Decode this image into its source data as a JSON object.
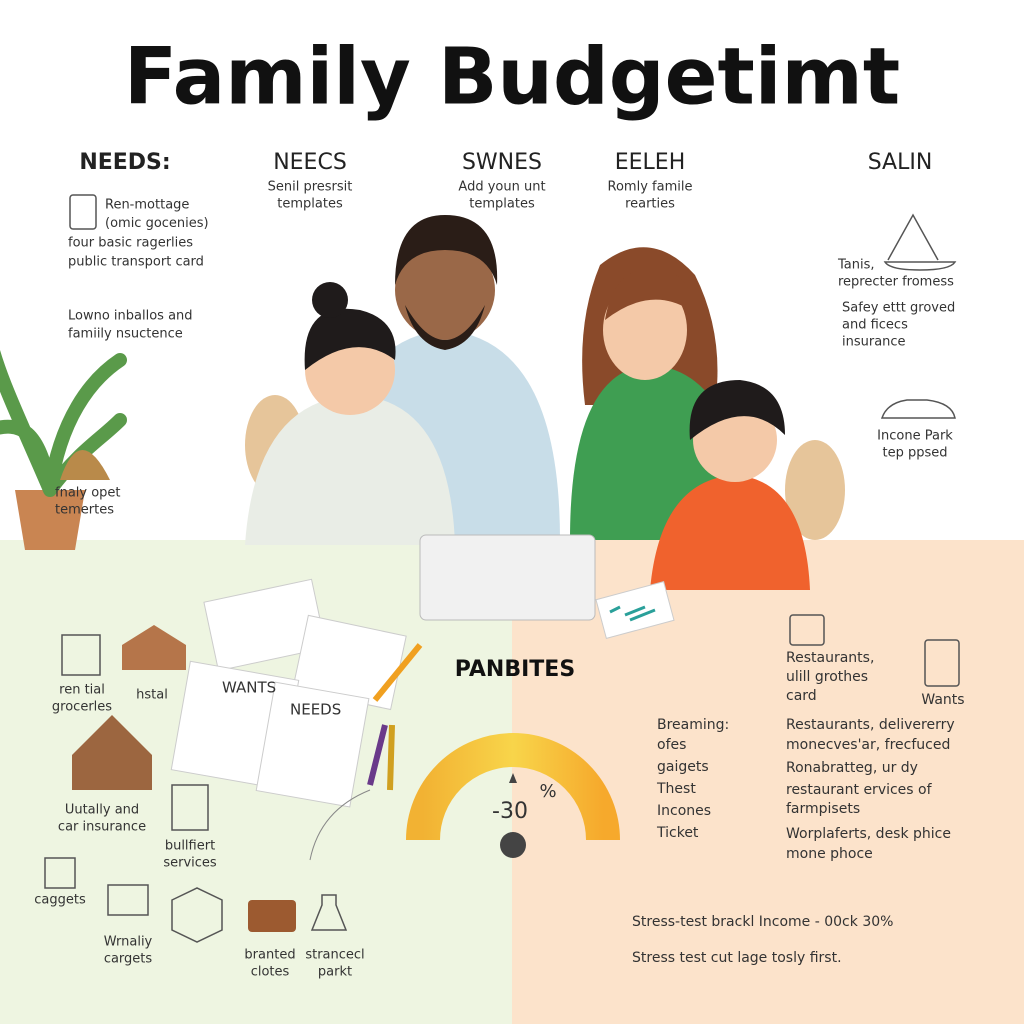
{
  "header": {
    "title": "Family Budgetimt"
  },
  "columns": [
    {
      "heading": "NEEDS:"
    },
    {
      "heading": "NEECS",
      "lines": [
        "Senil presrsit",
        "templates"
      ]
    },
    {
      "heading": "SWNES",
      "lines": [
        "Add youn unt",
        "templates"
      ]
    },
    {
      "heading": "EELEH",
      "lines": [
        "Romly famile",
        "rearties"
      ]
    },
    {
      "heading": "SALIN"
    }
  ],
  "left_notes": [
    [
      "Ren-mottage",
      "(omic gocenies)",
      "four basic ragerlies",
      "public transport card"
    ],
    [
      "Lowno inballos and",
      "famiily nsuctence"
    ],
    [
      "fnaly opet",
      "temertes"
    ]
  ],
  "right_notes": [
    [
      "Tanis,",
      "reprecter fromess"
    ],
    [
      "Safey ettt groved",
      "and ficecs",
      "insurance"
    ],
    [
      "Incone Park",
      "tep ppsed"
    ]
  ],
  "icon_labels": [
    [
      "ren tial",
      "grocerles"
    ],
    [
      "hstal"
    ],
    [
      "Uutally and",
      "car insurance"
    ],
    [
      "bullfiert",
      "services"
    ],
    [
      "caggets"
    ],
    [
      "Wrnaliy",
      "cargets"
    ],
    [
      "branted",
      "clotes"
    ],
    [
      "strancecl",
      "parkt"
    ]
  ],
  "papers": [
    "WANTS",
    "NEEDS"
  ],
  "center": {
    "heading": "PANBITES",
    "gauge_value": "-30",
    "gauge_unit": "%"
  },
  "wants_panel": {
    "note": [
      "Restaurants,",
      "ulill grothes",
      "card"
    ],
    "icon_label": "Wants",
    "list_heading": "Breaming:",
    "list": [
      "ofes",
      "gaigets",
      "Thest",
      "Incones",
      "Ticket"
    ],
    "details": [
      "Restaurants, delivererry",
      "monecves'ar, frecfuced",
      "Ronabratteg, ur dy",
      "restaurant ervices of",
      "farmpisets",
      "Worplaferts, desk phice",
      "mone phoce"
    ]
  },
  "footer": [
    "Stress-test brackl Income - 00ck 30%",
    "Stress test cut lage tosly first."
  ]
}
